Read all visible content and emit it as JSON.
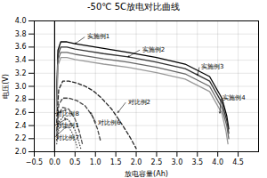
{
  "chart_data": {
    "type": "line",
    "title": "-50℃  5C放电对比曲线",
    "xlabel": "放电容量(Ah)",
    "ylabel": "电压(V)",
    "xlim": [
      -0.5,
      5
    ],
    "ylim": [
      2.0,
      4.0
    ],
    "xticks": [
      {
        "value": -0.5,
        "label": "−0.5"
      },
      {
        "value": 0,
        "label": "0.0"
      },
      0.5,
      {
        "value": 1,
        "label": "1.0"
      },
      1.5,
      {
        "value": 2,
        "label": "2.0"
      },
      2.5,
      {
        "value": 3,
        "label": "3.0"
      },
      3.5,
      {
        "value": 4,
        "label": "4.0"
      },
      4.5
    ],
    "yticks": [
      {
        "value": 2,
        "label": "2.0"
      },
      2.2,
      2.4,
      2.6,
      2.8,
      {
        "value": 3,
        "label": "3.0"
      },
      3.2,
      3.4,
      3.6,
      3.8,
      {
        "value": 4,
        "label": "4.0"
      }
    ],
    "grid": true,
    "series": [
      {
        "name": "实施例1",
        "color": "#000000",
        "line_style": "solid",
        "x": [
          0.05,
          0.08,
          0.15,
          0.3,
          0.5,
          0.8,
          1.2,
          1.8,
          2.5,
          3.2,
          3.8,
          4.1,
          4.22,
          4.27
        ],
        "values": [
          2.85,
          3.55,
          3.68,
          3.68,
          3.65,
          3.62,
          3.58,
          3.52,
          3.44,
          3.34,
          3.15,
          2.82,
          2.55,
          2.35
        ]
      },
      {
        "name": "实施例2",
        "color": "#333333",
        "line_style": "solid",
        "x": [
          0.05,
          0.08,
          0.15,
          0.3,
          0.5,
          0.8,
          1.2,
          1.8,
          2.5,
          3.2,
          3.8,
          4.1,
          4.22,
          4.27
        ],
        "values": [
          2.78,
          3.48,
          3.6,
          3.6,
          3.57,
          3.54,
          3.5,
          3.45,
          3.37,
          3.27,
          3.08,
          2.75,
          2.48,
          2.28
        ]
      },
      {
        "name": "实施例3",
        "color": "#666666",
        "line_style": "solid",
        "x": [
          0.05,
          0.08,
          0.15,
          0.3,
          0.5,
          0.8,
          1.2,
          1.8,
          2.5,
          3.2,
          3.8,
          4.1,
          4.22,
          4.27
        ],
        "values": [
          2.7,
          3.4,
          3.52,
          3.52,
          3.49,
          3.46,
          3.42,
          3.37,
          3.29,
          3.19,
          3.0,
          2.67,
          2.4,
          2.2
        ]
      },
      {
        "name": "实施例4",
        "color": "#999999",
        "line_style": "solid",
        "x": [
          0.05,
          0.08,
          0.15,
          0.3,
          0.5,
          0.8,
          1.2,
          1.8,
          2.5,
          3.2,
          3.8,
          4.1,
          4.2,
          4.25
        ],
        "values": [
          2.62,
          3.32,
          3.44,
          3.44,
          3.41,
          3.38,
          3.34,
          3.29,
          3.21,
          3.11,
          2.92,
          2.59,
          2.32,
          2.12
        ]
      },
      {
        "name": "对比例2",
        "color": "#222222",
        "line_style": "dashed",
        "x": [
          0.05,
          0.1,
          0.2,
          0.35,
          0.55,
          0.75,
          0.95,
          1.15,
          1.4,
          1.65,
          1.85,
          2.0
        ],
        "values": [
          2.45,
          2.95,
          3.08,
          3.08,
          3.05,
          3.0,
          2.93,
          2.82,
          2.65,
          2.42,
          2.22,
          2.05
        ]
      },
      {
        "name": "对比例6",
        "color": "#444444",
        "line_style": "dashed",
        "x": [
          0.05,
          0.1,
          0.2,
          0.35,
          0.55,
          0.75,
          0.92,
          1.05,
          1.12
        ],
        "values": [
          2.32,
          2.72,
          2.82,
          2.82,
          2.78,
          2.7,
          2.55,
          2.35,
          2.18
        ]
      },
      {
        "name": "对比例8",
        "color": "#555555",
        "line_style": "dashed",
        "x": [
          0.05,
          0.1,
          0.2,
          0.35,
          0.5,
          0.6,
          0.68
        ],
        "values": [
          2.25,
          2.58,
          2.68,
          2.65,
          2.5,
          2.32,
          2.12
        ]
      },
      {
        "name": "对比例1",
        "color": "#444444",
        "line_style": "dotted",
        "x": [
          0.05,
          0.1,
          0.2,
          0.35,
          0.5,
          0.58,
          0.64
        ],
        "values": [
          2.18,
          2.45,
          2.53,
          2.48,
          2.33,
          2.18,
          2.05
        ]
      },
      {
        "name": "对比例7",
        "color": "#555555",
        "line_style": "dotted",
        "x": [
          0.05,
          0.1,
          0.2,
          0.32,
          0.42,
          0.5,
          0.56
        ],
        "values": [
          2.12,
          2.35,
          2.43,
          2.4,
          2.3,
          2.18,
          2.05
        ]
      }
    ],
    "vlines": [
      0
    ],
    "annotations": [
      {
        "text": "实施例1",
        "xy": [
          0.5,
          3.65
        ],
        "xytext": [
          0.75,
          3.76
        ]
      },
      {
        "text": "实施例2",
        "xy": [
          1.8,
          3.45
        ],
        "xytext": [
          2.1,
          3.56
        ]
      },
      {
        "text": "实施例3",
        "xy": [
          3.5,
          3.17
        ],
        "xytext": [
          3.55,
          3.3
        ]
      },
      {
        "text": "实施例4",
        "xy": [
          4.05,
          2.59
        ],
        "xytext": [
          4.08,
          2.82
        ]
      },
      {
        "text": "对比例2",
        "xy": [
          1.55,
          2.6
        ],
        "xytext": [
          1.75,
          2.76
        ]
      },
      {
        "text": "对比例6",
        "xy": [
          0.88,
          2.6
        ],
        "xytext": [
          1.02,
          2.44
        ]
      },
      {
        "text": "对比例8",
        "xy": [
          0.28,
          2.64
        ],
        "xytext": [
          0.0,
          2.58
        ]
      },
      {
        "text": "对比例1",
        "xy": [
          0.28,
          2.5
        ],
        "xytext": [
          0.0,
          2.4
        ]
      },
      {
        "text": "对比例7",
        "xy": [
          0.28,
          2.38
        ],
        "xytext": [
          0.0,
          2.22
        ]
      }
    ]
  }
}
